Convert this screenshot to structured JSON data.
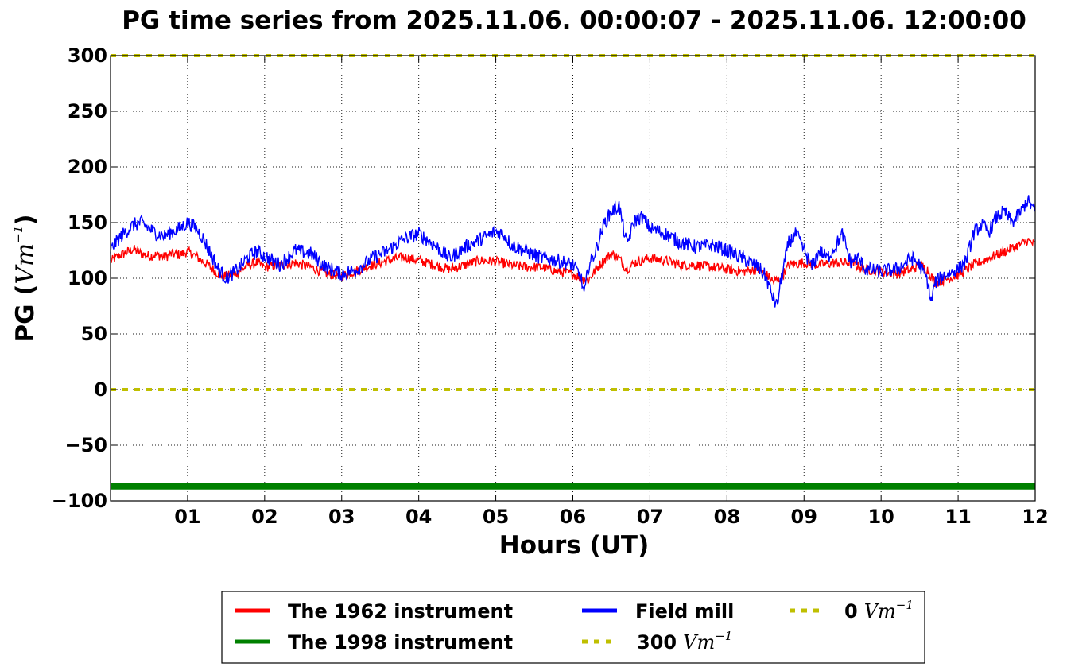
{
  "chart_data": {
    "type": "line",
    "title": "PG time series from 2025.11.06. 00:00:07 - 2025.11.06. 12:00:00",
    "xlabel": "Hours (UT)",
    "ylabel_prefix": "PG (",
    "ylabel_unit": "Vm",
    "ylabel_exp": "−1",
    "ylabel_suffix": ")",
    "xlim": [
      0,
      12
    ],
    "ylim": [
      -100,
      300
    ],
    "x_ticks": [
      {
        "value": 1,
        "label": "01"
      },
      {
        "value": 2,
        "label": "02"
      },
      {
        "value": 3,
        "label": "03"
      },
      {
        "value": 4,
        "label": "04"
      },
      {
        "value": 5,
        "label": "05"
      },
      {
        "value": 6,
        "label": "06"
      },
      {
        "value": 7,
        "label": "07"
      },
      {
        "value": 8,
        "label": "08"
      },
      {
        "value": 9,
        "label": "09"
      },
      {
        "value": 10,
        "label": "10"
      },
      {
        "value": 11,
        "label": "11"
      },
      {
        "value": 12,
        "label": "12"
      }
    ],
    "y_ticks": [
      {
        "value": 300,
        "label": "300"
      },
      {
        "value": 250,
        "label": "250"
      },
      {
        "value": 200,
        "label": "200"
      },
      {
        "value": 150,
        "label": "150"
      },
      {
        "value": 100,
        "label": "100"
      },
      {
        "value": 50,
        "label": "50"
      },
      {
        "value": 0,
        "label": "0"
      },
      {
        "value": -50,
        "label": "−50"
      },
      {
        "value": -100,
        "label": "−100"
      }
    ],
    "grid": true,
    "legend_placement": "bottom-center",
    "series": [
      {
        "name": "The 1962 instrument",
        "color": "#ff0000",
        "x": [
          0,
          0.1,
          0.2,
          0.3,
          0.4,
          0.5,
          0.6,
          0.7,
          0.8,
          0.9,
          1.0,
          1.1,
          1.2,
          1.3,
          1.4,
          1.5,
          1.6,
          1.7,
          1.8,
          1.9,
          2.0,
          2.2,
          2.4,
          2.6,
          2.8,
          3.0,
          3.2,
          3.4,
          3.6,
          3.8,
          4.0,
          4.2,
          4.4,
          4.6,
          4.8,
          5.0,
          5.2,
          5.4,
          5.6,
          5.8,
          6.0,
          6.1,
          6.2,
          6.3,
          6.4,
          6.5,
          6.6,
          6.7,
          6.8,
          7.0,
          7.2,
          7.4,
          7.6,
          7.8,
          8.0,
          8.2,
          8.4,
          8.5,
          8.6,
          8.7,
          8.8,
          9.0,
          9.2,
          9.4,
          9.6,
          9.8,
          10.0,
          10.2,
          10.4,
          10.5,
          10.6,
          10.7,
          10.8,
          11.0,
          11.2,
          11.4,
          11.6,
          11.8,
          11.9,
          12.0
        ],
        "y": [
          115,
          120,
          123,
          126,
          122,
          120,
          121,
          119,
          122,
          121,
          124,
          120,
          115,
          110,
          104,
          102,
          103,
          108,
          112,
          114,
          110,
          112,
          114,
          110,
          104,
          102,
          107,
          112,
          116,
          119,
          116,
          112,
          108,
          112,
          116,
          115,
          112,
          110,
          110,
          106,
          104,
          100,
          98,
          108,
          116,
          122,
          118,
          108,
          114,
          118,
          116,
          112,
          112,
          110,
          108,
          106,
          108,
          104,
          97,
          100,
          112,
          114,
          112,
          114,
          114,
          108,
          106,
          104,
          108,
          112,
          108,
          96,
          98,
          103,
          112,
          118,
          124,
          130,
          134,
          130
        ]
      },
      {
        "name": "The 1998 instrument",
        "color": "#008000",
        "x": [
          0,
          12
        ],
        "y": [
          -87,
          -87
        ]
      },
      {
        "name": "Field mill",
        "color": "#0000ff",
        "x": [
          0,
          0.1,
          0.2,
          0.3,
          0.4,
          0.5,
          0.6,
          0.7,
          0.8,
          0.9,
          1.0,
          1.1,
          1.2,
          1.3,
          1.4,
          1.5,
          1.6,
          1.7,
          1.8,
          1.9,
          2.0,
          2.2,
          2.4,
          2.6,
          2.8,
          3.0,
          3.2,
          3.4,
          3.6,
          3.8,
          4.0,
          4.2,
          4.4,
          4.6,
          4.8,
          5.0,
          5.1,
          5.2,
          5.4,
          5.6,
          5.8,
          6.0,
          6.1,
          6.15,
          6.2,
          6.3,
          6.4,
          6.5,
          6.6,
          6.7,
          6.8,
          6.9,
          7.0,
          7.2,
          7.4,
          7.6,
          7.8,
          8.0,
          8.2,
          8.4,
          8.5,
          8.6,
          8.65,
          8.7,
          8.8,
          8.9,
          9.0,
          9.1,
          9.2,
          9.3,
          9.4,
          9.5,
          9.6,
          9.7,
          9.8,
          10.0,
          10.2,
          10.4,
          10.5,
          10.6,
          10.65,
          10.7,
          10.8,
          11.0,
          11.1,
          11.2,
          11.3,
          11.4,
          11.5,
          11.6,
          11.7,
          11.8,
          11.9,
          12.0
        ],
        "y": [
          125,
          135,
          142,
          148,
          150,
          145,
          140,
          138,
          142,
          145,
          150,
          146,
          136,
          122,
          108,
          100,
          105,
          112,
          120,
          124,
          120,
          112,
          125,
          122,
          110,
          104,
          108,
          118,
          125,
          135,
          140,
          130,
          118,
          128,
          135,
          142,
          140,
          130,
          124,
          118,
          116,
          112,
          102,
          85,
          110,
          125,
          148,
          160,
          165,
          130,
          152,
          155,
          145,
          140,
          132,
          128,
          130,
          125,
          118,
          110,
          102,
          82,
          75,
          98,
          132,
          140,
          125,
          110,
          125,
          118,
          128,
          140,
          115,
          118,
          108,
          106,
          108,
          118,
          112,
          98,
          78,
          96,
          102,
          108,
          115,
          140,
          148,
          142,
          155,
          160,
          150,
          158,
          170,
          160
        ]
      }
    ],
    "reference_lines": [
      {
        "name": "300",
        "value": 300,
        "color": "#bfbf00"
      },
      {
        "name": "0",
        "value": 0,
        "color": "#bfbf00"
      }
    ],
    "legend": {
      "unit_base": "Vm",
      "unit_exp": "−1",
      "entries": [
        {
          "label": "The 1962 instrument",
          "color": "#ff0000",
          "style": "solid"
        },
        {
          "label": "The 1998 instrument",
          "color": "#008000",
          "style": "solid"
        },
        {
          "label": "Field mill",
          "color": "#0000ff",
          "style": "solid"
        },
        {
          "label": "300",
          "color": "#bfbf00",
          "style": "dotted"
        },
        {
          "label": "0",
          "color": "#bfbf00",
          "style": "dotted"
        }
      ]
    }
  }
}
